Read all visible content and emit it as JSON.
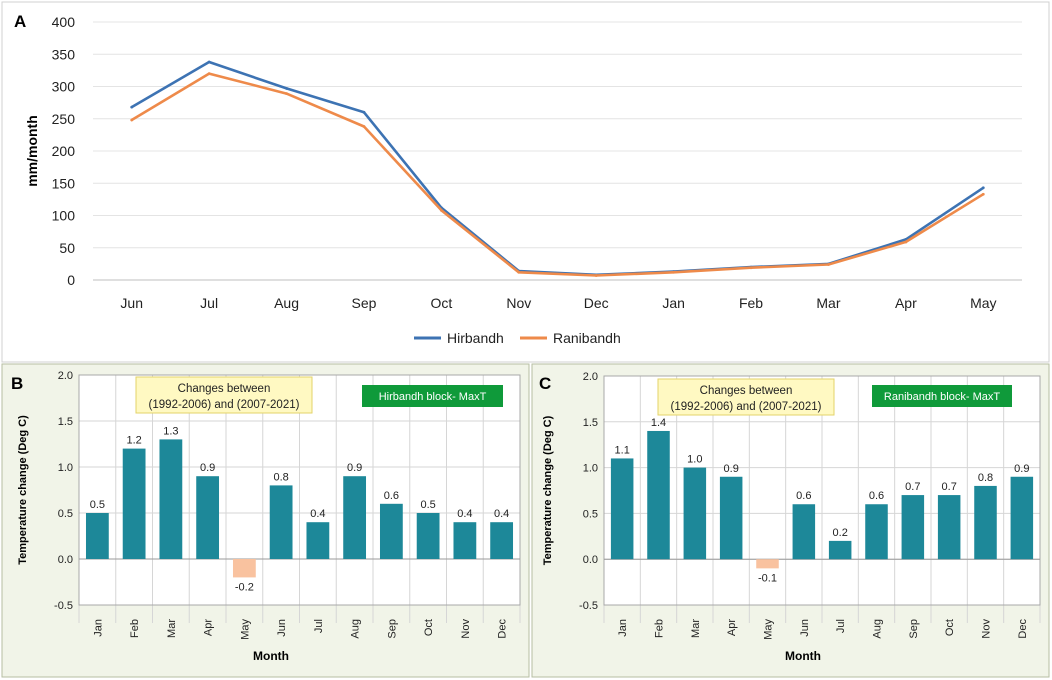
{
  "colors": {
    "hirbandh": "#3d73b3",
    "ranibandh": "#ee8a4a",
    "bar_positive": "#1d8899",
    "bar_negative": "#f9c29f",
    "note_fill": "#fff9c2",
    "note_stroke": "#e3d36a",
    "badge_fill": "#0f9a3a",
    "panel_bg": "#f1f4e8"
  },
  "chart_data": [
    {
      "id": "A",
      "panel_label": "A",
      "type": "line",
      "title": "",
      "xlabel": "",
      "ylabel": "mm/month",
      "ylim": [
        0,
        400
      ],
      "yticks": [
        "0",
        "50",
        "100",
        "150",
        "200",
        "250",
        "300",
        "350",
        "400"
      ],
      "categories": [
        "Jun",
        "Jul",
        "Aug",
        "Sep",
        "Oct",
        "Nov",
        "Dec",
        "Jan",
        "Feb",
        "Mar",
        "Apr",
        "May"
      ],
      "series": [
        {
          "name": "Hirbandh",
          "color": "#3d73b3",
          "values": [
            268,
            338,
            297,
            260,
            112,
            14,
            8,
            13,
            20,
            25,
            63,
            143
          ]
        },
        {
          "name": "Ranibandh",
          "color": "#ee8a4a",
          "values": [
            248,
            320,
            289,
            238,
            108,
            12,
            7,
            12,
            19,
            24,
            59,
            133
          ]
        }
      ],
      "legend": "bottom-center",
      "grid": true
    },
    {
      "id": "B",
      "panel_label": "B",
      "type": "bar",
      "ylabel": "Temperature change (Deg C)",
      "xlabel": "Month",
      "ylim": [
        -0.5,
        2.0
      ],
      "yticks": [
        "-0.5",
        "0.0",
        "0.5",
        "1.0",
        "1.5",
        "2.0"
      ],
      "categories": [
        "Jan",
        "Feb",
        "Mar",
        "Apr",
        "May",
        "Jun",
        "Jul",
        "Aug",
        "Sep",
        "Oct",
        "Nov",
        "Dec"
      ],
      "values": [
        0.5,
        1.2,
        1.3,
        0.9,
        -0.2,
        0.8,
        0.4,
        0.9,
        0.6,
        0.5,
        0.4,
        0.4
      ],
      "data_labels": [
        "0.5",
        "1.2",
        "1.3",
        "0.9",
        "-0.2",
        "0.8",
        "0.4",
        "0.9",
        "0.6",
        "0.5",
        "0.4",
        "0.4"
      ],
      "note_lines": [
        "Changes between",
        "(1992-2006) and (2007-2021)"
      ],
      "badge": "Hirbandh block- MaxT"
    },
    {
      "id": "C",
      "panel_label": "C",
      "type": "bar",
      "ylabel": "Temperature change (Deg C)",
      "xlabel": "Month",
      "ylim": [
        -0.5,
        2.0
      ],
      "yticks": [
        "-0.5",
        "0.0",
        "0.5",
        "1.0",
        "1.5",
        "2.0"
      ],
      "categories": [
        "Jan",
        "Feb",
        "Mar",
        "Apr",
        "May",
        "Jun",
        "Jul",
        "Aug",
        "Sep",
        "Oct",
        "Nov",
        "Dec"
      ],
      "values": [
        1.1,
        1.4,
        1.0,
        0.9,
        -0.1,
        0.6,
        0.2,
        0.6,
        0.7,
        0.7,
        0.8,
        0.9
      ],
      "data_labels": [
        "1.1",
        "1.4",
        "1.0",
        "0.9",
        "-0.1",
        "0.6",
        "0.2",
        "0.6",
        "0.7",
        "0.7",
        "0.8",
        "0.9"
      ],
      "note_lines": [
        "Changes between",
        "(1992-2006) and (2007-2021)"
      ],
      "badge": "Ranibandh block- MaxT"
    }
  ]
}
